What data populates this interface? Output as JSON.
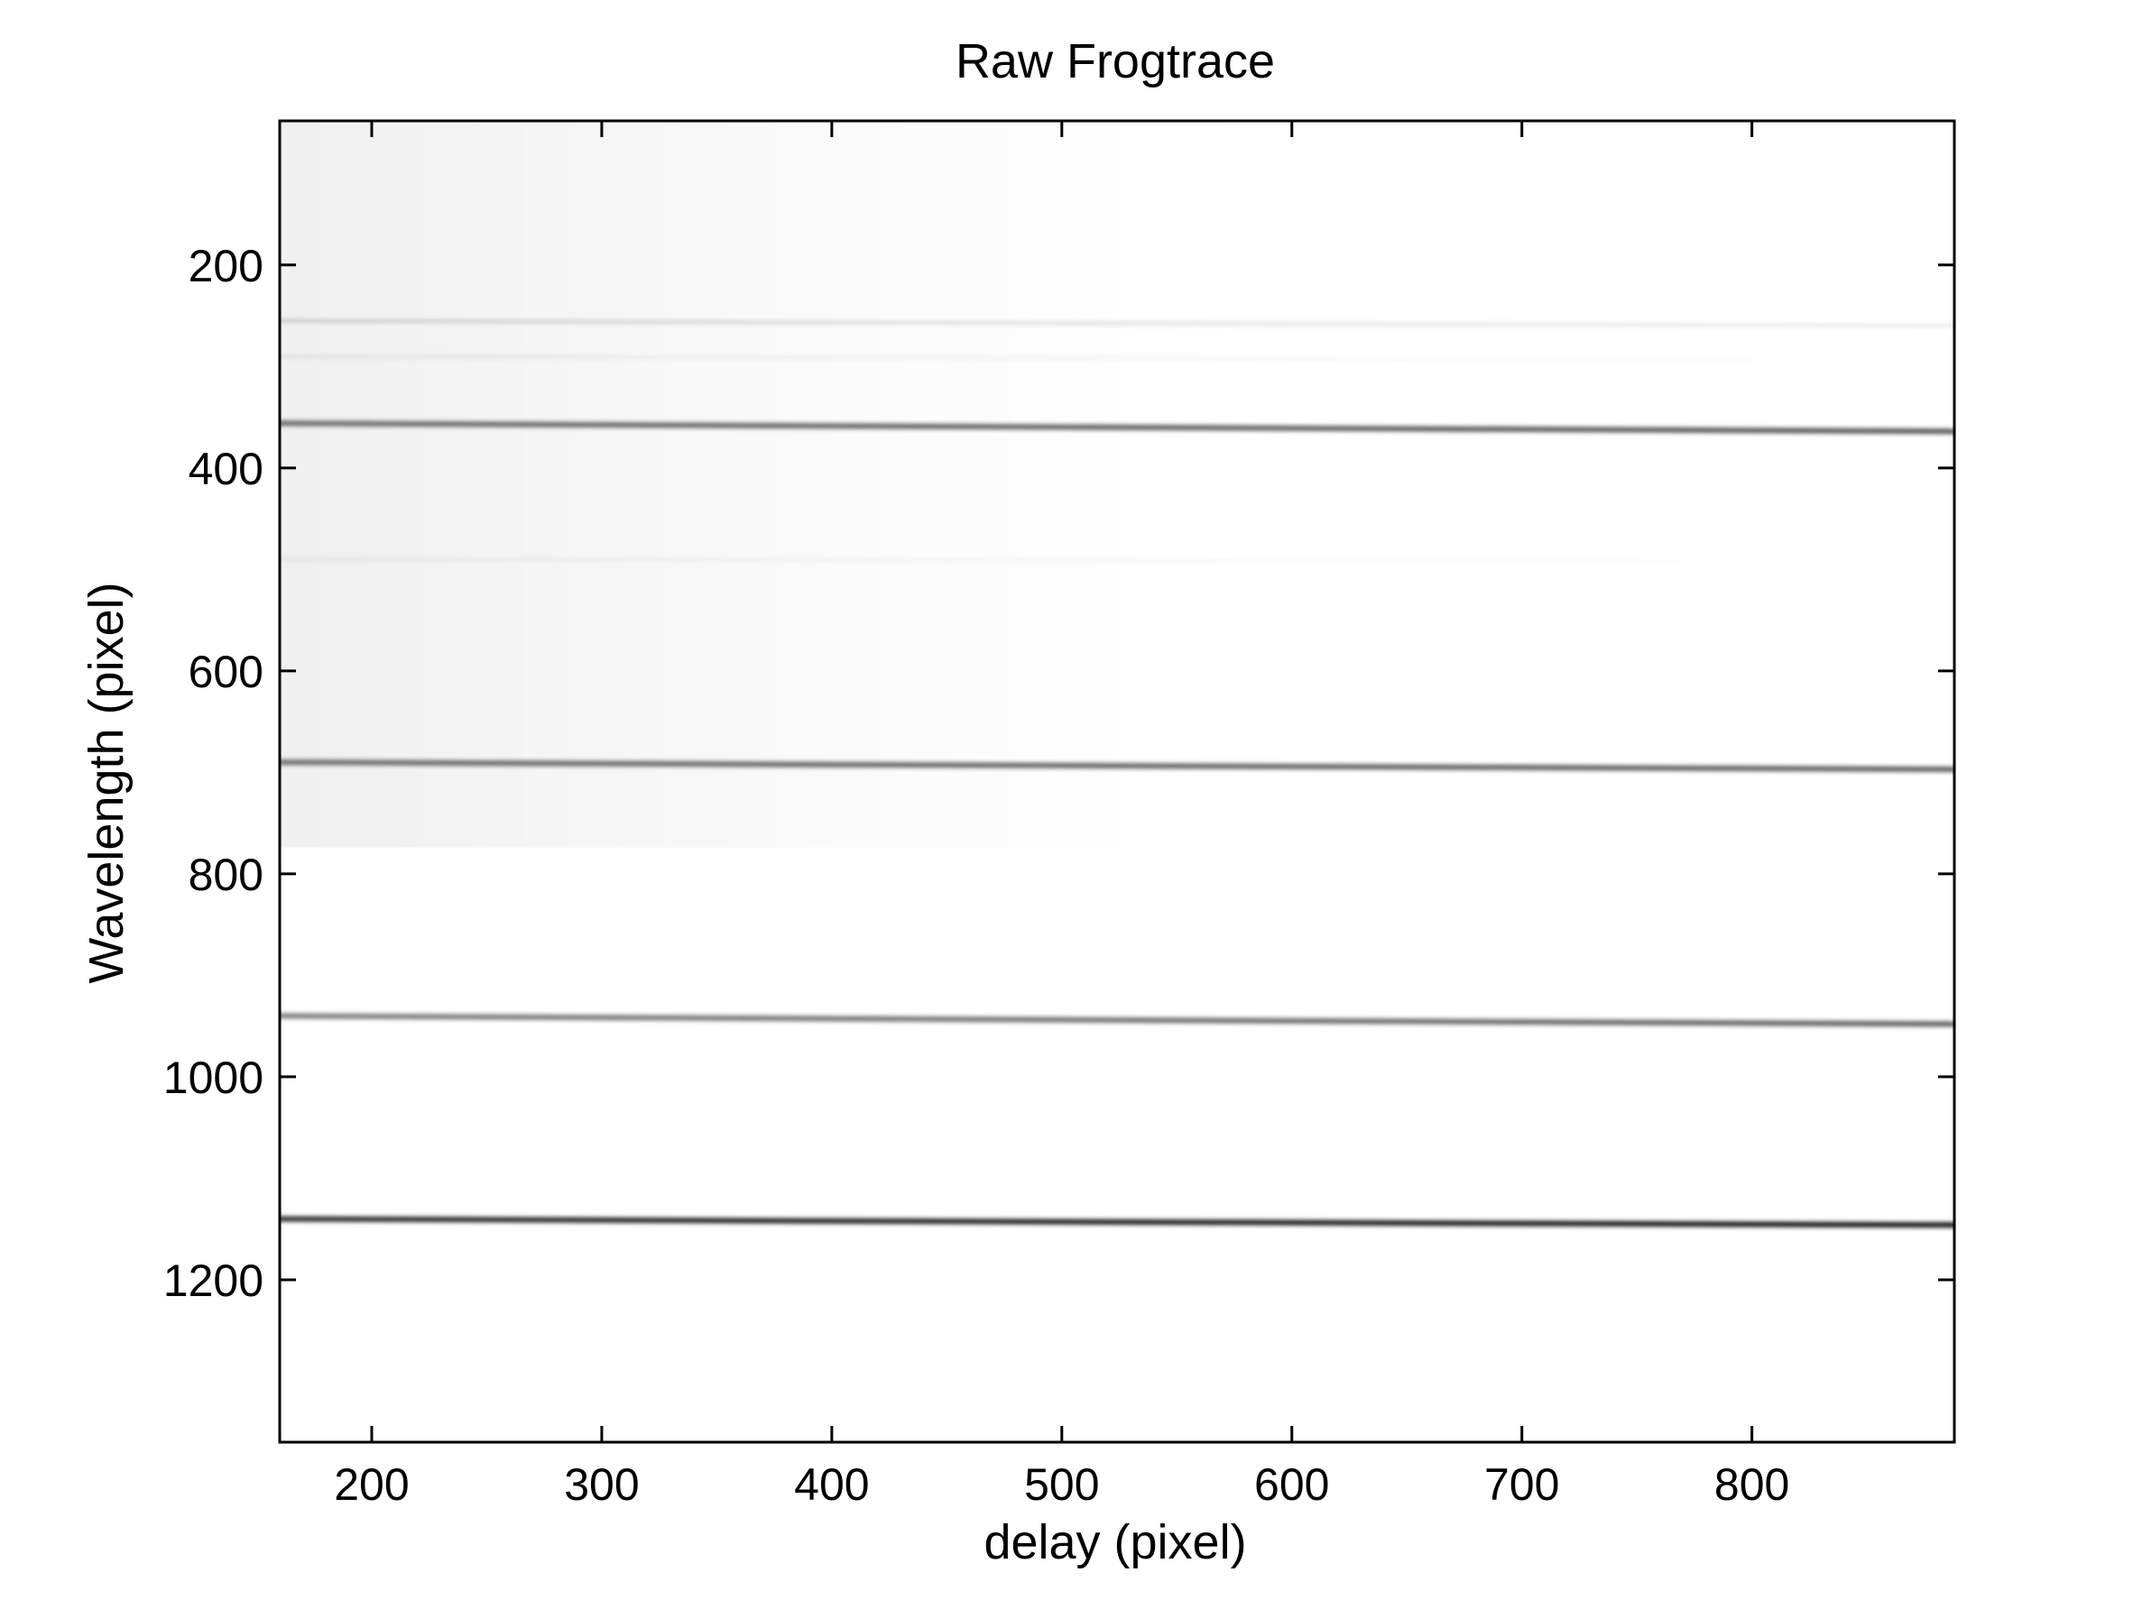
{
  "chart_data": {
    "type": "heatmap",
    "title": "Raw Frogtrace",
    "xlabel": "delay (pixel)",
    "ylabel": "Wavelength (pixel)",
    "xlim": [
      160,
      888
    ],
    "ylim": [
      1360,
      58
    ],
    "y_inverted": true,
    "x_ticks": [
      "200",
      "300",
      "400",
      "500",
      "600",
      "700",
      "800"
    ],
    "y_ticks": [
      "200",
      "400",
      "600",
      "800",
      "1000",
      "1200"
    ],
    "colormap": "gray_inverted",
    "grid": false,
    "bands": [
      {
        "y_start": 255,
        "y_end": 260,
        "intensity": [
          0.16,
          0.12,
          0.08
        ],
        "width": 4
      },
      {
        "y_start": 290,
        "y_end": 294,
        "intensity": [
          0.07,
          0.04,
          0.0
        ],
        "width": 4
      },
      {
        "y_start": 356,
        "y_end": 364,
        "intensity": [
          0.55,
          0.6,
          0.65
        ],
        "width": 6
      },
      {
        "y_start": 490,
        "y_end": 492,
        "intensity": [
          0.06,
          0.03,
          0.0
        ],
        "width": 4
      },
      {
        "y_start": 690,
        "y_end": 697,
        "intensity": [
          0.55,
          0.6,
          0.62
        ],
        "width": 6
      },
      {
        "y_start": 940,
        "y_end": 948,
        "intensity": [
          0.5,
          0.55,
          0.62
        ],
        "width": 6
      },
      {
        "y_start": 1140,
        "y_end": 1146,
        "intensity": [
          0.82,
          0.88,
          0.92
        ],
        "width": 6
      }
    ],
    "background_haze": {
      "region": "upper-left",
      "intensity": 0.05
    }
  }
}
